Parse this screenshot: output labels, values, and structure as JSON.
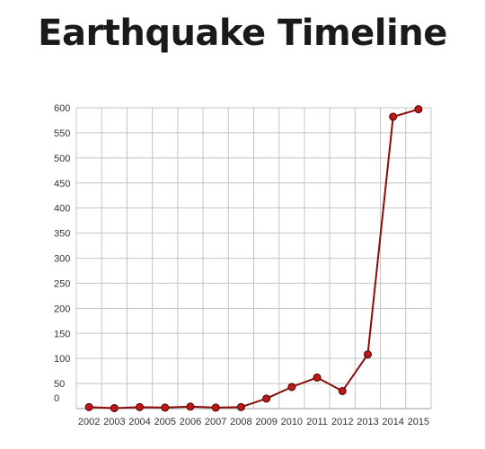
{
  "chart_data": {
    "type": "line",
    "title": "Earthquake Timeline",
    "xlabel": "",
    "ylabel": "",
    "x": [
      "2002",
      "2003",
      "2004",
      "2005",
      "2006",
      "2007",
      "2008",
      "2009",
      "2010",
      "2011",
      "2012",
      "2013",
      "2014",
      "2015"
    ],
    "series": [
      {
        "values": [
          3,
          1,
          3,
          2,
          4,
          2,
          3,
          20,
          43,
          62,
          35,
          108,
          582,
          597
        ]
      }
    ],
    "ylim": [
      0,
      600
    ],
    "yticks": [
      0,
      50,
      100,
      150,
      200,
      250,
      300,
      350,
      400,
      450,
      500,
      550,
      600
    ],
    "grid": true,
    "legend": "none",
    "colors": {
      "line": "#8b0a0a",
      "marker": "#c01818",
      "marker_edge": "#4a0000"
    }
  }
}
